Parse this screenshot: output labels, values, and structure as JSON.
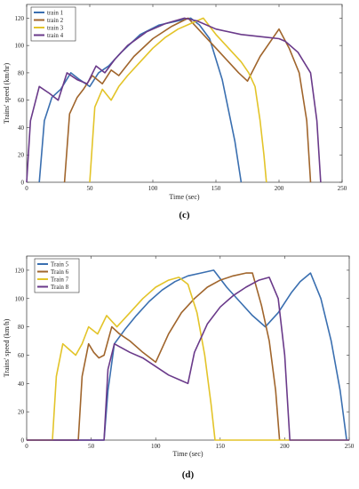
{
  "chart_data": [
    {
      "type": "line",
      "panel_label": "(c)",
      "xlabel": "Time (sec)",
      "ylabel": "Trains' speed (km/hr)",
      "xlim": [
        0,
        250
      ],
      "ylim": [
        0,
        130
      ],
      "xticks": [
        0,
        50,
        100,
        150,
        200,
        250
      ],
      "yticks": [
        0,
        20,
        40,
        60,
        80,
        100,
        120
      ],
      "grid": false,
      "legend_position": "top-left",
      "series": [
        {
          "name": "train 1",
          "color": "#3a6fb0",
          "x": [
            10,
            14,
            20,
            27,
            35,
            42,
            50,
            57,
            65,
            75,
            90,
            105,
            120,
            130,
            137,
            145,
            155,
            165,
            170
          ],
          "y": [
            0,
            45,
            62,
            68,
            80,
            75,
            70,
            80,
            85,
            95,
            108,
            115,
            118,
            120,
            115,
            105,
            75,
            30,
            0
          ]
        },
        {
          "name": "train 2",
          "color": "#a0652c",
          "x": [
            30,
            34,
            40,
            45,
            52,
            60,
            67,
            73,
            85,
            100,
            115,
            128,
            140,
            150,
            160,
            168,
            175,
            185,
            200,
            208,
            216,
            222,
            225
          ],
          "y": [
            0,
            50,
            62,
            68,
            78,
            72,
            82,
            78,
            92,
            105,
            114,
            120,
            108,
            98,
            88,
            80,
            74,
            92,
            112,
            98,
            80,
            45,
            0
          ]
        },
        {
          "name": "train 3",
          "color": "#e3c429",
          "x": [
            50,
            54,
            60,
            67,
            73,
            80,
            90,
            100,
            110,
            120,
            130,
            140,
            150,
            160,
            170,
            176,
            181,
            185,
            188,
            190
          ],
          "y": [
            0,
            55,
            68,
            60,
            70,
            78,
            88,
            98,
            106,
            112,
            116,
            120,
            108,
            98,
            88,
            80,
            70,
            45,
            20,
            0
          ]
        },
        {
          "name": "train 4",
          "color": "#6a3a8a",
          "x": [
            0,
            3,
            10,
            18,
            25,
            32,
            40,
            48,
            55,
            62,
            70,
            80,
            95,
            110,
            125,
            135,
            150,
            170,
            190,
            200,
            205,
            215,
            225,
            230,
            233
          ],
          "y": [
            0,
            45,
            70,
            65,
            60,
            80,
            75,
            72,
            85,
            80,
            90,
            100,
            110,
            116,
            120,
            118,
            112,
            108,
            106,
            105,
            103,
            95,
            80,
            45,
            0
          ]
        }
      ]
    },
    {
      "type": "line",
      "panel_label": "(d)",
      "xlabel": "Time (sec)",
      "ylabel": "Trains' speed (km/h)",
      "xlim": [
        0,
        250
      ],
      "ylim": [
        0,
        130
      ],
      "xticks": [
        0,
        50,
        100,
        150,
        200,
        250
      ],
      "yticks": [
        0,
        20,
        40,
        60,
        80,
        100,
        120
      ],
      "grid": false,
      "legend_position": "top-left",
      "series": [
        {
          "name": "Train 5",
          "color": "#3a6fb0",
          "x": [
            0,
            60,
            63,
            68,
            76,
            85,
            95,
            105,
            115,
            125,
            135,
            145,
            155,
            165,
            175,
            185,
            195,
            205,
            212,
            220,
            228,
            236,
            243,
            248
          ],
          "y": [
            0,
            0,
            35,
            68,
            78,
            88,
            98,
            106,
            112,
            116,
            118,
            120,
            108,
            98,
            88,
            80,
            90,
            104,
            112,
            118,
            100,
            70,
            35,
            0
          ]
        },
        {
          "name": "Train 6",
          "color": "#a0652c",
          "x": [
            0,
            40,
            43,
            48,
            52,
            56,
            60,
            66,
            72,
            80,
            90,
            100,
            110,
            120,
            130,
            140,
            150,
            160,
            170,
            175,
            182,
            188,
            193,
            196
          ],
          "y": [
            0,
            0,
            45,
            68,
            62,
            58,
            60,
            80,
            75,
            70,
            62,
            55,
            75,
            90,
            100,
            108,
            113,
            116,
            118,
            118,
            95,
            70,
            35,
            0
          ]
        },
        {
          "name": "Train 7",
          "color": "#e3c429",
          "x": [
            0,
            20,
            23,
            28,
            33,
            38,
            43,
            48,
            55,
            62,
            70,
            80,
            90,
            100,
            110,
            118,
            125,
            132,
            138,
            143,
            146,
            250
          ],
          "y": [
            0,
            0,
            45,
            68,
            64,
            60,
            68,
            80,
            75,
            88,
            80,
            90,
            100,
            108,
            113,
            115,
            110,
            90,
            60,
            25,
            0,
            0
          ]
        },
        {
          "name": "Train 8",
          "color": "#6a3a8a",
          "x": [
            0,
            60,
            63,
            68,
            72,
            80,
            90,
            100,
            110,
            120,
            125,
            130,
            140,
            150,
            160,
            170,
            180,
            188,
            195,
            200,
            204,
            250
          ],
          "y": [
            0,
            0,
            50,
            68,
            66,
            62,
            58,
            52,
            46,
            42,
            40,
            62,
            82,
            94,
            102,
            108,
            113,
            115,
            100,
            60,
            0,
            0
          ]
        }
      ]
    }
  ]
}
